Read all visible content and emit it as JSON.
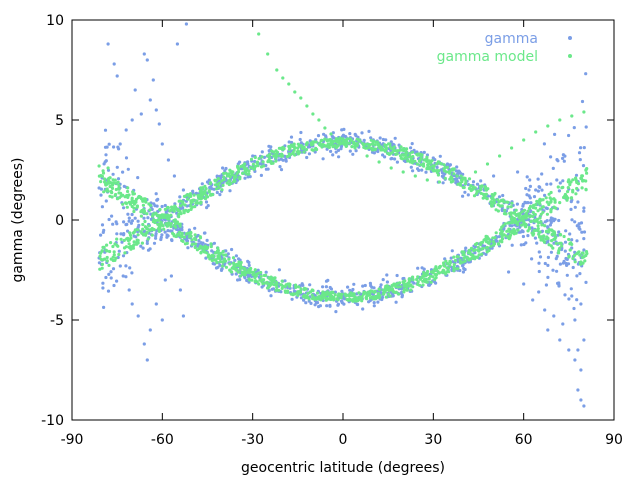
{
  "chart_data": {
    "type": "scatter",
    "xlabel": "geocentric latitude (degrees)",
    "ylabel": "gamma (degrees)",
    "xlim": [
      -90,
      90
    ],
    "ylim": [
      -10,
      10
    ],
    "xticks": [
      -90,
      -60,
      -30,
      0,
      30,
      60,
      90
    ],
    "yticks": [
      -10,
      -5,
      0,
      5,
      10
    ],
    "grid": false,
    "legend_position": "top-right",
    "series": [
      {
        "name": "gamma",
        "color": "#7b9ee6",
        "dense_bands": "two bands along y = ±3.85*cos(1.5*x), x from -81 to 81, half-width ~0.3, widening to ~1.5 beyond |x|>55",
        "points": [
          [
            -81,
            1.6
          ],
          [
            -81,
            -1.9
          ],
          [
            -80,
            2.1
          ],
          [
            -79,
            -1.5
          ],
          [
            -78,
            8.8
          ],
          [
            -76,
            7.8
          ],
          [
            -75,
            7.2
          ],
          [
            -74,
            3.8
          ],
          [
            -73,
            -2.8
          ],
          [
            -72,
            4.5
          ],
          [
            -71,
            -3.5
          ],
          [
            -70,
            5.0
          ],
          [
            -70,
            -4.2
          ],
          [
            -69,
            6.5
          ],
          [
            -68,
            -4.8
          ],
          [
            -67,
            5.3
          ],
          [
            -66,
            8.3
          ],
          [
            -66,
            -6.2
          ],
          [
            -65,
            8.0
          ],
          [
            -65,
            -7.0
          ],
          [
            -64,
            6.0
          ],
          [
            -64,
            -5.5
          ],
          [
            -63,
            7.0
          ],
          [
            -62,
            5.5
          ],
          [
            -62,
            -4.2
          ],
          [
            -61,
            4.8
          ],
          [
            -60,
            3.8
          ],
          [
            -60,
            -5.0
          ],
          [
            -59,
            -3.0
          ],
          [
            -58,
            3.0
          ],
          [
            -57,
            -2.8
          ],
          [
            -56,
            2.2
          ],
          [
            -55,
            8.8
          ],
          [
            -54,
            -3.5
          ],
          [
            -53,
            -4.8
          ],
          [
            -53,
            1.5
          ],
          [
            -52,
            9.8
          ],
          [
            -51,
            -0.5
          ],
          [
            -50,
            0.8
          ],
          [
            -48,
            -1.2
          ],
          [
            -45,
            1.9
          ],
          [
            -42,
            -2.4
          ],
          [
            -40,
            2.6
          ],
          [
            -35,
            -3.0
          ],
          [
            -30,
            3.2
          ],
          [
            -25,
            -3.4
          ],
          [
            -20,
            3.5
          ],
          [
            -15,
            -3.6
          ],
          [
            -10,
            3.7
          ],
          [
            0,
            -3.9
          ],
          [
            10,
            3.6
          ],
          [
            20,
            -3.4
          ],
          [
            30,
            3.1
          ],
          [
            40,
            -2.6
          ],
          [
            50,
            2.2
          ],
          [
            55,
            -2.6
          ],
          [
            58,
            2.4
          ],
          [
            60,
            -3.2
          ],
          [
            62,
            2.0
          ],
          [
            63,
            -4.0
          ],
          [
            64,
            1.5
          ],
          [
            65,
            -3.6
          ],
          [
            66,
            2.3
          ],
          [
            67,
            -4.5
          ],
          [
            68,
            -5.5
          ],
          [
            69,
            1.8
          ],
          [
            70,
            -4.8
          ],
          [
            71,
            2.0
          ],
          [
            72,
            -6.0
          ],
          [
            73,
            -5.2
          ],
          [
            74,
            1.2
          ],
          [
            75,
            -6.5
          ],
          [
            76,
            -3.8
          ],
          [
            76,
            1.0
          ],
          [
            77,
            -7.0
          ],
          [
            77,
            -5.0
          ],
          [
            78,
            -6.5
          ],
          [
            78,
            -8.5
          ],
          [
            79,
            -9.0
          ],
          [
            79,
            -7.5
          ],
          [
            80,
            -9.3
          ],
          [
            80,
            -6.0
          ],
          [
            79,
            -4.2
          ],
          [
            78,
            1.5
          ],
          [
            80,
            0.6
          ],
          [
            77,
            -2.0
          ],
          [
            80,
            -1.5
          ]
        ]
      },
      {
        "name": "gamma model",
        "color": "#6be88a",
        "bands": "two bands along y = ±3.85*cos(1.5*x), x from -81 to 81, half-width 0.45 near equator, 0.8 near poles",
        "points": [
          [
            -81,
            2.7
          ],
          [
            -78,
            2.6
          ],
          [
            -57,
            0.5
          ],
          [
            -55,
            -0.1
          ],
          [
            -52,
            -0.7
          ],
          [
            -49,
            -1.2
          ],
          [
            -46,
            -1.6
          ],
          [
            -43,
            -2.0
          ],
          [
            -40,
            -2.3
          ],
          [
            -37,
            -2.6
          ],
          [
            -34,
            -2.8
          ],
          [
            -31,
            -3.0
          ],
          [
            -28,
            -3.2
          ],
          [
            -25,
            -3.4
          ],
          [
            -22,
            -3.5
          ],
          [
            -19,
            -3.6
          ],
          [
            -16,
            -3.7
          ],
          [
            -28,
            9.3
          ],
          [
            -25,
            8.3
          ],
          [
            -22,
            7.5
          ],
          [
            -20,
            7.1
          ],
          [
            -18,
            6.8
          ],
          [
            -16,
            6.4
          ],
          [
            -14,
            6.1
          ],
          [
            -12,
            5.7
          ],
          [
            -10,
            5.3
          ],
          [
            -8,
            5.0
          ],
          [
            -6,
            4.6
          ],
          [
            -4,
            4.3
          ],
          [
            -1,
            4.1
          ],
          [
            4,
            3.6
          ],
          [
            8,
            3.2
          ],
          [
            12,
            2.9
          ],
          [
            16,
            2.6
          ],
          [
            20,
            2.4
          ],
          [
            24,
            2.2
          ],
          [
            28,
            2.0
          ],
          [
            32,
            1.9
          ],
          [
            36,
            1.9
          ],
          [
            40,
            2.1
          ],
          [
            44,
            2.4
          ],
          [
            48,
            2.8
          ],
          [
            52,
            3.2
          ],
          [
            56,
            3.6
          ],
          [
            60,
            4.0
          ],
          [
            64,
            4.4
          ],
          [
            68,
            4.7
          ],
          [
            72,
            5.0
          ],
          [
            76,
            5.2
          ],
          [
            80,
            5.4
          ]
        ]
      }
    ]
  }
}
